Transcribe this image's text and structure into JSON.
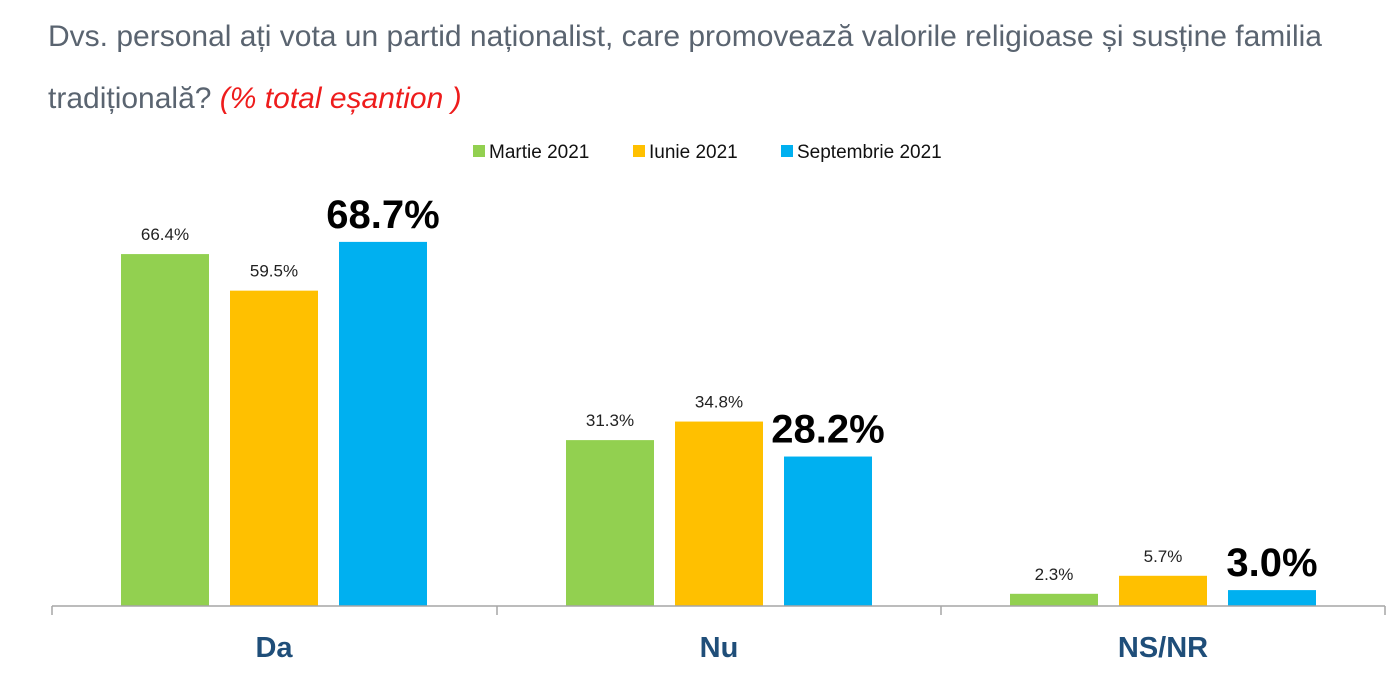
{
  "title": {
    "question": "Dvs. personal ați vota un partid naționalist, care promovează valorile religioase și susține familia tradițională? ",
    "note": "(% total eșantion )"
  },
  "chart_data": {
    "type": "bar",
    "categories": [
      "Da",
      "Nu",
      "NS/NR"
    ],
    "series": [
      {
        "name": "Martie 2021",
        "color": "#92d050",
        "values": [
          66.4,
          31.3,
          2.3
        ],
        "labels": [
          "66.4%",
          "31.3%",
          "2.3%"
        ],
        "emphasis": false
      },
      {
        "name": "Iunie 2021",
        "color": "#ffc000",
        "values": [
          59.5,
          34.8,
          5.7
        ],
        "labels": [
          "59.5%",
          "34.8%",
          "5.7%"
        ],
        "emphasis": false
      },
      {
        "name": "Septembrie 2021",
        "color": "#00b0f0",
        "values": [
          68.7,
          28.2,
          3.0
        ],
        "labels": [
          "68.7%",
          "28.2%",
          "3.0%"
        ],
        "emphasis": true
      }
    ],
    "ylim": [
      0,
      75
    ],
    "grid": false,
    "legend": "top-center",
    "category_label_color": "#1f4e79"
  }
}
